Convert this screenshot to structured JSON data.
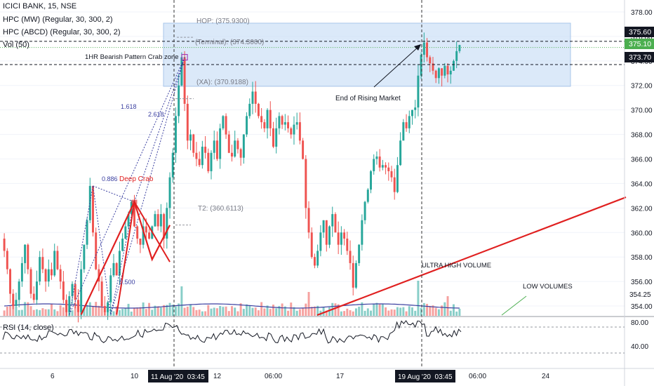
{
  "legend": {
    "title": "ICICI BANK, 15, NSE",
    "ind1": "HPC (MW) (Regular, 30, 300, 2)",
    "ind2": "HPC (ABCD) (Regular, 30, 300, 2)",
    "vol": "Vol (50)",
    "rsi": "RSI (14, close)"
  },
  "annotations": {
    "zone_label": "1HR Bearish Pattern Crab zone",
    "end_rising": "End of Rising Market",
    "ultra_volume": "ULTRA HIGH VOLUME",
    "low_volumes": "LOW VOLUMES",
    "deep_crab": "Deep Crab",
    "hop": "HOP: (375.9300)",
    "terminal": "(Terminal): (374.3000)",
    "xa": "(XA): (370.9188)",
    "t2": "T2: (360.6113)",
    "fib_1618": "1.618",
    "fib_2618": "2.618",
    "fib_886": "0.886",
    "fib_500": "0.500"
  },
  "price_axis": {
    "ticks": [
      "378.00",
      "376.00",
      "374.00",
      "372.00",
      "370.00",
      "368.00",
      "366.00",
      "364.00",
      "362.00",
      "360.00",
      "358.00",
      "356.00",
      "354.00"
    ],
    "tag_high": "375.60",
    "tag_last": "375.10",
    "tag_low": "373.70",
    "vol_tick": "354.25"
  },
  "rsi_axis": {
    "ticks": [
      "80.00",
      "40.00"
    ]
  },
  "time_axis": {
    "labels": [
      "6",
      "10",
      "12",
      "06:00",
      "17",
      "06:00",
      "24"
    ],
    "highlight1": "11 Aug '20  03:45",
    "highlight2": "19 Aug '20  03:45"
  },
  "colors": {
    "up": "#26a69a",
    "down": "#ef5350",
    "pattern": "#e02020",
    "zone": "#cfe1f7",
    "rsi": "#131722",
    "volma": "#3a3fa0",
    "tag_green": "#4caf50"
  },
  "chart_data": {
    "type": "candlestick",
    "ylim": [
      353.2,
      378.8
    ],
    "levels": {
      "hop": 375.93,
      "terminal": 374.3,
      "xa": 370.9188,
      "t2": 360.6113,
      "high_line": 375.6,
      "low_line": 373.7,
      "last": 375.1
    },
    "path": [
      359.5,
      358.5,
      357,
      355,
      354,
      354.5,
      356,
      357.5,
      359,
      357,
      355,
      354.5,
      356,
      358,
      357,
      356,
      357,
      356.5,
      358.5,
      357,
      356,
      354.5,
      353.5,
      354.8,
      355.8,
      354.5,
      353.5,
      357,
      359,
      361,
      363.8,
      360,
      357,
      356,
      354,
      353.5,
      354.3,
      356.5,
      357.5,
      356.5,
      358.5,
      359.5,
      360.5,
      361.5,
      362.5,
      360.5,
      359.5,
      359,
      360.5,
      360,
      359.5,
      360.5,
      361.5,
      360.5,
      361.5,
      359.5,
      362,
      364.5,
      366.5,
      369.5,
      372,
      374.3,
      370.5,
      367.5,
      368,
      366.5,
      366,
      365.5,
      367,
      366.5,
      365,
      366.5,
      367.5,
      366,
      368.5,
      369.5,
      368,
      366.5,
      366.2,
      367.5,
      366.8,
      366.1,
      368,
      369.5,
      370.5,
      371.5,
      370.5,
      369.5,
      369,
      368.5,
      370,
      368.5,
      367,
      368.5,
      369.5,
      368.8,
      369,
      368.5,
      368,
      368.8,
      369,
      367.5,
      366,
      362,
      360,
      358,
      357.3,
      358.5,
      360,
      361,
      359,
      360.5,
      361.5,
      360,
      359,
      360,
      359.5,
      358.5,
      357.5,
      355.5,
      357.5,
      359,
      361,
      362.5,
      363.5,
      365,
      366,
      366.2,
      365.3,
      365.5,
      365.3,
      365,
      364.5,
      363.3,
      365.5,
      367.5,
      369,
      368.5,
      369.5,
      370,
      370.2,
      372.8,
      374.5,
      375.5,
      374.3,
      373.8,
      373.2,
      372.6,
      373.4,
      372.8,
      373.6,
      372.9,
      373.2,
      374,
      374.8,
      375.3
    ]
  }
}
